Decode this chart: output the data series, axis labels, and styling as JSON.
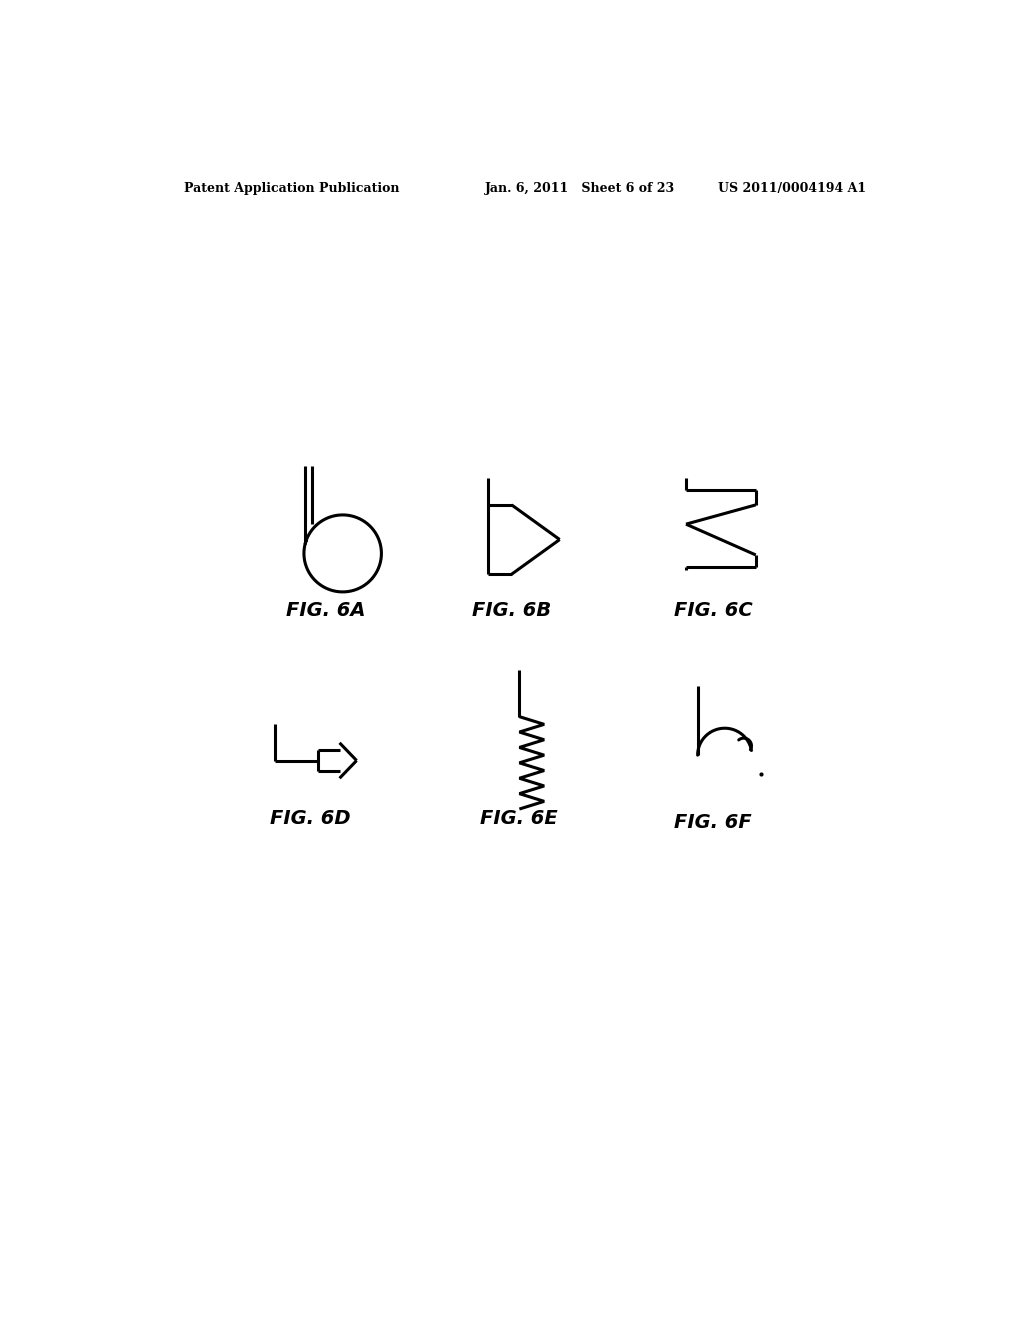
{
  "title_left": "Patent Application Publication",
  "title_center": "Jan. 6, 2011   Sheet 6 of 23",
  "title_right": "US 2011/0004194 A1",
  "background_color": "#ffffff",
  "fig_labels": [
    "FIG. 6A",
    "FIG. 6B",
    "FIG. 6C",
    "FIG. 6D",
    "FIG. 6E",
    "FIG. 6F"
  ],
  "line_color": "#000000",
  "line_width": 2.2
}
